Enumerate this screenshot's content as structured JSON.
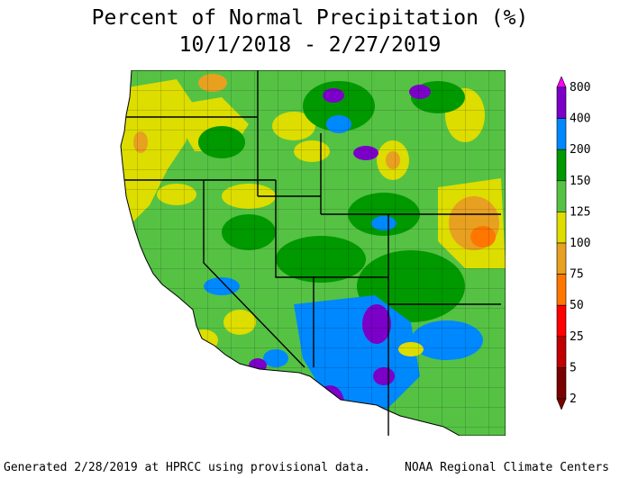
{
  "title_line1": "Percent of Normal Precipitation (%)",
  "title_line2": "10/1/2018 - 2/27/2019",
  "legend": {
    "tick_labels": [
      "800",
      "400",
      "200",
      "150",
      "125",
      "100",
      "75",
      "50",
      "25",
      "5",
      "2"
    ],
    "colors": [
      "#ff00ff",
      "#7b00c8",
      "#0088ff",
      "#009900",
      "#55c244",
      "#dddd00",
      "#e8a020",
      "#ff7700",
      "#ff0000",
      "#c00000",
      "#7a0000"
    ]
  },
  "footer": {
    "left": "Generated 2/28/2019 at HPRCC using provisional data.",
    "right": "NOAA Regional Climate Centers"
  }
}
